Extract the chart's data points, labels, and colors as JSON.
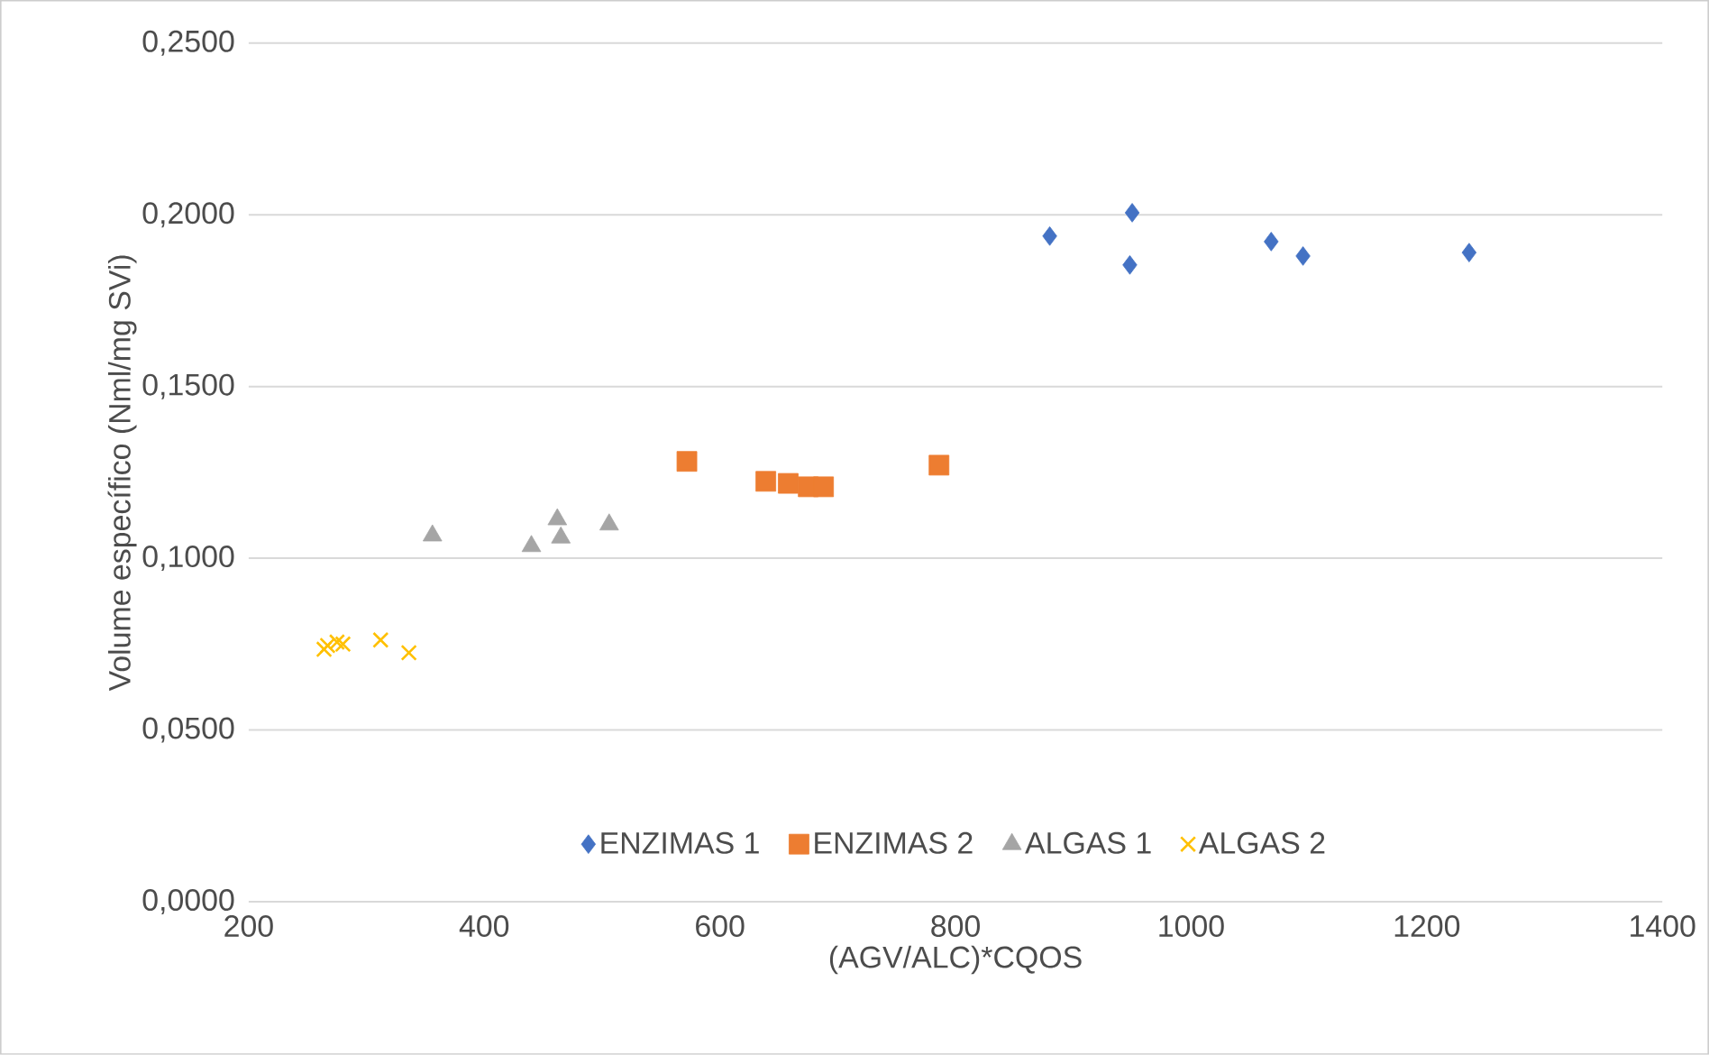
{
  "chart_data": {
    "type": "scatter",
    "xlabel": "(AGV/ALC)*CQOS",
    "ylabel": "Volume específico (Nml/mg SVi)",
    "xlim": [
      200,
      1400
    ],
    "xticks": [
      200,
      400,
      600,
      800,
      1000,
      1200,
      1400
    ],
    "ylim": [
      0,
      0.25
    ],
    "yticks": [
      {
        "value": 0,
        "label": "0,0000"
      },
      {
        "value": 0.05,
        "label": "0,0500"
      },
      {
        "value": 0.1,
        "label": "0,1000"
      },
      {
        "value": 0.15,
        "label": "0,1500"
      },
      {
        "value": 0.2,
        "label": "0,2000"
      },
      {
        "value": 0.25,
        "label": "0,2500"
      }
    ],
    "grid": "y",
    "legend": "bottom",
    "series": [
      {
        "name": "ENZIMAS 1",
        "color": "#4472c4",
        "marker": "diamond",
        "x": [
          880,
          950,
          948,
          1068,
          1095,
          1236
        ],
        "values": [
          0.1938,
          0.2006,
          0.1854,
          0.1922,
          0.188,
          0.189
        ]
      },
      {
        "name": "ENZIMAS 2",
        "color": "#ed7d31",
        "marker": "square",
        "x": [
          572,
          639,
          658,
          675,
          688,
          786
        ],
        "values": [
          0.1282,
          0.1224,
          0.1218,
          0.1208,
          0.1208,
          0.1271
        ]
      },
      {
        "name": "ALGAS 1",
        "color": "#a5a5a5",
        "marker": "triangle",
        "x": [
          356,
          440,
          462,
          465,
          506
        ],
        "values": [
          0.1066,
          0.1035,
          0.1113,
          0.106,
          0.1098
        ]
      },
      {
        "name": "ALGAS 2",
        "color": "#ffc000",
        "marker": "cross",
        "x": [
          264,
          267,
          275,
          280,
          312,
          336
        ],
        "values": [
          0.0735,
          0.0746,
          0.0756,
          0.075,
          0.0762,
          0.0725
        ]
      }
    ]
  }
}
